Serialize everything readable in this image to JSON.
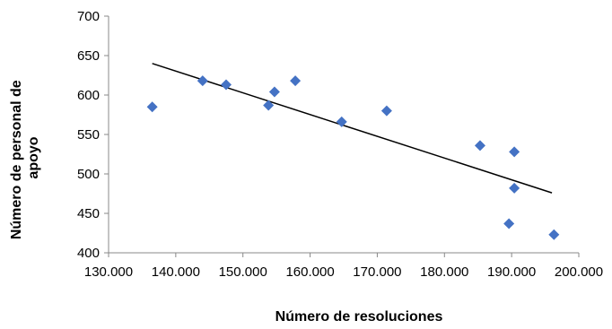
{
  "chart_data": {
    "type": "scatter",
    "xlabel": "Número de resoluciones",
    "ylabel_lines": [
      "Número de personal de",
      "apoyo"
    ],
    "xlim": [
      130000,
      200000
    ],
    "ylim": [
      400,
      700
    ],
    "x_ticks": [
      130000,
      140000,
      150000,
      160000,
      170000,
      180000,
      190000,
      200000
    ],
    "x_tick_labels": [
      "130.000",
      "140.000",
      "150.000",
      "160.000",
      "170.000",
      "180.000",
      "190.000",
      "200.000"
    ],
    "y_ticks": [
      400,
      450,
      500,
      550,
      600,
      650,
      700
    ],
    "y_tick_labels": [
      "400",
      "450",
      "500",
      "550",
      "600",
      "650",
      "700"
    ],
    "grid": false,
    "marker": "diamond",
    "marker_color": "#4472C4",
    "trendline_color": "#000000",
    "points": [
      {
        "x": 136500,
        "y": 585
      },
      {
        "x": 144000,
        "y": 618
      },
      {
        "x": 147500,
        "y": 613
      },
      {
        "x": 153800,
        "y": 587
      },
      {
        "x": 154700,
        "y": 604
      },
      {
        "x": 157800,
        "y": 618
      },
      {
        "x": 164700,
        "y": 566
      },
      {
        "x": 171400,
        "y": 580
      },
      {
        "x": 185300,
        "y": 536
      },
      {
        "x": 189600,
        "y": 437
      },
      {
        "x": 190400,
        "y": 528
      },
      {
        "x": 190400,
        "y": 482
      },
      {
        "x": 196300,
        "y": 423
      }
    ],
    "trendline": [
      {
        "x": 136500,
        "y": 640
      },
      {
        "x": 196000,
        "y": 476
      }
    ]
  }
}
